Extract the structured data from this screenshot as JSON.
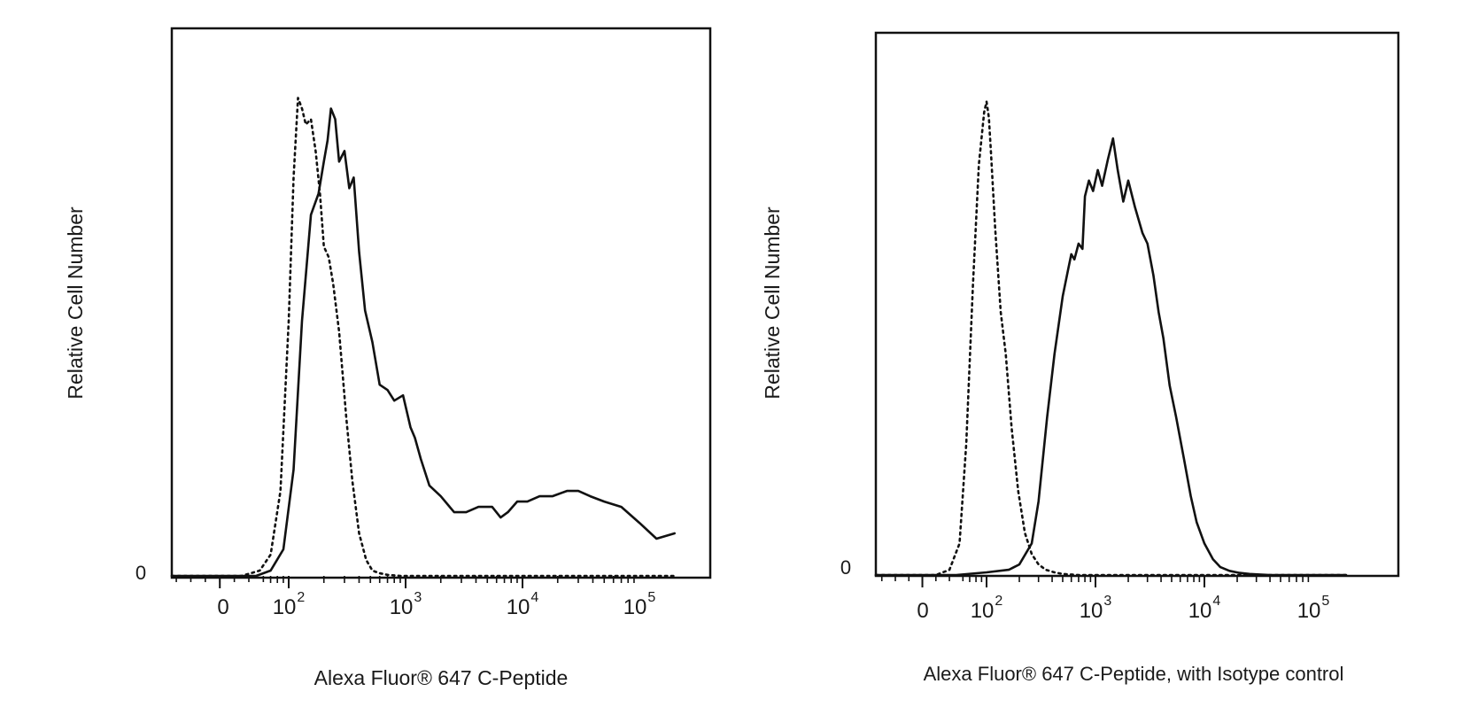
{
  "chart_data": [
    {
      "type": "line",
      "title": "",
      "xlabel": "Alexa Fluor® 647 C-Peptide",
      "ylabel": "Relative Cell Number",
      "y_tick_zero": "0",
      "x_scale": "biexponential",
      "x_ticks": [
        {
          "value": 0,
          "base": "0",
          "exp": ""
        },
        {
          "value": 100,
          "base": "10",
          "exp": "2"
        },
        {
          "value": 1000,
          "base": "10",
          "exp": "3"
        },
        {
          "value": 10000,
          "base": "10",
          "exp": "4"
        },
        {
          "value": 100000,
          "base": "10",
          "exp": "5"
        }
      ],
      "xlim": [
        -200,
        200000
      ],
      "ylim": [
        0,
        1
      ],
      "grid": false,
      "series": [
        {
          "style": "dotted",
          "x": [
            -200,
            30,
            55,
            70,
            85,
            100,
            110,
            120,
            130,
            140,
            155,
            170,
            185,
            200,
            220,
            240,
            270,
            310,
            350,
            400,
            460,
            520,
            600,
            700,
            900,
            1500,
            200000
          ],
          "y": [
            0,
            0,
            0.01,
            0.04,
            0.16,
            0.48,
            0.75,
            0.9,
            0.88,
            0.85,
            0.86,
            0.8,
            0.72,
            0.62,
            0.6,
            0.55,
            0.46,
            0.3,
            0.18,
            0.08,
            0.03,
            0.01,
            0.005,
            0.002,
            0,
            0,
            0
          ]
        },
        {
          "style": "solid",
          "x": [
            -200,
            50,
            70,
            90,
            110,
            130,
            155,
            180,
            200,
            215,
            230,
            250,
            270,
            300,
            330,
            360,
            400,
            450,
            520,
            600,
            700,
            800,
            950,
            1100,
            1200,
            1350,
            1600,
            2000,
            2600,
            3300,
            4200,
            5500,
            6500,
            7500,
            9000,
            11000,
            14000,
            18000,
            24000,
            30000,
            38000,
            50000,
            70000,
            100000,
            140000,
            200000
          ],
          "y": [
            0,
            0,
            0.01,
            0.05,
            0.2,
            0.48,
            0.68,
            0.72,
            0.78,
            0.82,
            0.88,
            0.86,
            0.78,
            0.8,
            0.73,
            0.75,
            0.61,
            0.5,
            0.44,
            0.36,
            0.35,
            0.33,
            0.34,
            0.28,
            0.26,
            0.22,
            0.17,
            0.15,
            0.12,
            0.12,
            0.13,
            0.13,
            0.11,
            0.12,
            0.14,
            0.14,
            0.15,
            0.15,
            0.16,
            0.16,
            0.15,
            0.14,
            0.13,
            0.1,
            0.07,
            0.08
          ]
        }
      ]
    },
    {
      "type": "line",
      "title": "",
      "xlabel": "Alexa  Fluor® 647  C-Peptide,  with  Isotype  control",
      "ylabel": "Relative Cell Number",
      "y_tick_zero": "0",
      "x_scale": "biexponential",
      "x_ticks": [
        {
          "value": 0,
          "base": "0",
          "exp": ""
        },
        {
          "value": 100,
          "base": "10",
          "exp": "2"
        },
        {
          "value": 1000,
          "base": "10",
          "exp": "3"
        },
        {
          "value": 10000,
          "base": "10",
          "exp": "4"
        },
        {
          "value": 100000,
          "base": "10",
          "exp": "5"
        }
      ],
      "xlim": [
        -200,
        200000
      ],
      "ylim": [
        0,
        1
      ],
      "grid": false,
      "series": [
        {
          "style": "dotted",
          "x": [
            -200,
            20,
            40,
            55,
            65,
            75,
            85,
            95,
            100,
            105,
            110,
            120,
            135,
            150,
            170,
            195,
            225,
            260,
            300,
            350,
            420,
            500,
            700,
            200000
          ],
          "y": [
            0,
            0,
            0.01,
            0.06,
            0.25,
            0.55,
            0.78,
            0.88,
            0.9,
            0.87,
            0.8,
            0.66,
            0.5,
            0.42,
            0.28,
            0.16,
            0.08,
            0.04,
            0.02,
            0.01,
            0.005,
            0.002,
            0,
            0
          ]
        },
        {
          "style": "solid",
          "x": [
            -200,
            50,
            100,
            160,
            200,
            260,
            300,
            360,
            420,
            500,
            560,
            600,
            640,
            700,
            760,
            800,
            870,
            950,
            1050,
            1150,
            1300,
            1450,
            1600,
            1800,
            2000,
            2300,
            2700,
            3000,
            3400,
            3800,
            4200,
            4800,
            5500,
            6500,
            7500,
            8500,
            10000,
            12000,
            14000,
            17000,
            21000,
            26000,
            32000,
            40000,
            200000
          ],
          "y": [
            0,
            0,
            0.005,
            0.01,
            0.02,
            0.06,
            0.14,
            0.3,
            0.42,
            0.53,
            0.58,
            0.61,
            0.6,
            0.63,
            0.62,
            0.72,
            0.75,
            0.73,
            0.77,
            0.74,
            0.79,
            0.83,
            0.77,
            0.71,
            0.75,
            0.7,
            0.65,
            0.63,
            0.57,
            0.5,
            0.45,
            0.36,
            0.3,
            0.22,
            0.15,
            0.1,
            0.06,
            0.03,
            0.015,
            0.008,
            0.004,
            0.002,
            0.001,
            0,
            0
          ]
        }
      ]
    }
  ]
}
